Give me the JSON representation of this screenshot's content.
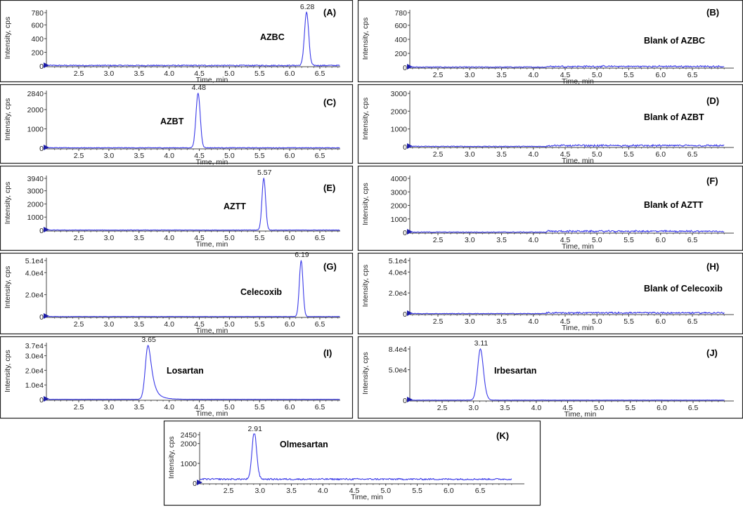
{
  "colors": {
    "trace": "#3a3ae8",
    "marker": "#1c1ca8",
    "frame": "#222222",
    "axis": "#444444"
  },
  "chart_data": [
    {
      "id": "A",
      "type": "line",
      "panel_label": "(A)",
      "compound": "AZBC",
      "xlabel": "Time, min",
      "ylabel": "Intensity, cps",
      "xlim": [
        2.0,
        7.0
      ],
      "x_ticks": [
        "2.5",
        "3.0",
        "3.5",
        "4.0",
        "4.5",
        "5.0",
        "5.5",
        "6.0",
        "6.5"
      ],
      "ylim": [
        0,
        780
      ],
      "y_ticks": [
        {
          "value": 0,
          "label": "0"
        },
        {
          "value": 200,
          "label": "200"
        },
        {
          "value": 400,
          "label": "400"
        },
        {
          "value": 600,
          "label": "600"
        },
        {
          "value": 780,
          "label": "780"
        }
      ],
      "peak": {
        "rt": 6.28,
        "label": "6.28",
        "height": 780,
        "width": 0.035,
        "tail": 0
      },
      "baseline": 8,
      "noise": 8
    },
    {
      "id": "B",
      "type": "line",
      "panel_label": "(B)",
      "compound": "Blank of AZBC",
      "xlabel": "Time, min",
      "ylabel": "Intensity, cps",
      "xlim": [
        2.0,
        7.0
      ],
      "x_ticks": [
        "2.5",
        "3.0",
        "3.5",
        "4.0",
        "4.5",
        "5.0",
        "5.5",
        "6.0",
        "6.5"
      ],
      "ylim": [
        0,
        780
      ],
      "y_ticks": [
        {
          "value": 0,
          "label": "0"
        },
        {
          "value": 200,
          "label": "200"
        },
        {
          "value": 400,
          "label": "400"
        },
        {
          "value": 600,
          "label": "600"
        },
        {
          "value": 780,
          "label": "780"
        }
      ],
      "peak": null,
      "baseline": 5,
      "noise": 6,
      "late_noise": {
        "start": 4.2,
        "amp": 18
      }
    },
    {
      "id": "C",
      "type": "line",
      "panel_label": "(C)",
      "compound": "AZBT",
      "xlabel": "Time, min",
      "ylabel": "Intensity, cps",
      "xlim": [
        2.0,
        7.0
      ],
      "x_ticks": [
        "2.5",
        "3.0",
        "3.5",
        "4.0",
        "4.5",
        "5.0",
        "5.5",
        "6.0",
        "6.5"
      ],
      "ylim": [
        0,
        2840
      ],
      "y_ticks": [
        {
          "value": 0,
          "label": "0"
        },
        {
          "value": 1000,
          "label": "1000"
        },
        {
          "value": 2000,
          "label": "2000"
        },
        {
          "value": 2840,
          "label": "2840"
        }
      ],
      "peak": {
        "rt": 4.48,
        "label": "4.48",
        "height": 2840,
        "width": 0.035,
        "tail": 0
      },
      "baseline": 20,
      "noise": 15
    },
    {
      "id": "D",
      "type": "line",
      "panel_label": "(D)",
      "compound": "Blank of AZBT",
      "xlabel": "Time, min",
      "ylabel": "Intensity, cps",
      "xlim": [
        2.0,
        7.0
      ],
      "x_ticks": [
        "2.5",
        "3.0",
        "3.5",
        "4.0",
        "4.5",
        "5.0",
        "5.5",
        "6.0",
        "6.5"
      ],
      "ylim": [
        0,
        3000
      ],
      "y_ticks": [
        {
          "value": 0,
          "label": "0"
        },
        {
          "value": 1000,
          "label": "1000"
        },
        {
          "value": 2000,
          "label": "2000"
        },
        {
          "value": 3000,
          "label": "3000"
        }
      ],
      "peak": null,
      "baseline": 20,
      "noise": 20,
      "late_noise": {
        "start": 4.2,
        "amp": 90
      }
    },
    {
      "id": "E",
      "type": "line",
      "panel_label": "(E)",
      "compound": "AZTT",
      "xlabel": "Time, min",
      "ylabel": "Intensity, cps",
      "xlim": [
        2.0,
        7.0
      ],
      "x_ticks": [
        "2.5",
        "3.0",
        "3.5",
        "4.0",
        "4.5",
        "5.0",
        "5.5",
        "6.0",
        "6.5"
      ],
      "ylim": [
        0,
        3940
      ],
      "y_ticks": [
        {
          "value": 0,
          "label": "0"
        },
        {
          "value": 1000,
          "label": "1000"
        },
        {
          "value": 2000,
          "label": "2000"
        },
        {
          "value": 3000,
          "label": "3000"
        },
        {
          "value": 3940,
          "label": "3940"
        }
      ],
      "peak": {
        "rt": 5.57,
        "label": "5.57",
        "height": 3940,
        "width": 0.03,
        "tail": 0
      },
      "baseline": 20,
      "noise": 15
    },
    {
      "id": "F",
      "type": "line",
      "panel_label": "(F)",
      "compound": "Blank of AZTT",
      "xlabel": "Time, min",
      "ylabel": "Intensity, cps",
      "xlim": [
        2.0,
        7.0
      ],
      "x_ticks": [
        "2.5",
        "3.0",
        "3.5",
        "4.0",
        "4.5",
        "5.0",
        "5.5",
        "6.0",
        "6.5"
      ],
      "ylim": [
        0,
        4000
      ],
      "y_ticks": [
        {
          "value": 0,
          "label": "0"
        },
        {
          "value": 1000,
          "label": "1000"
        },
        {
          "value": 2000,
          "label": "2000"
        },
        {
          "value": 3000,
          "label": "3000"
        },
        {
          "value": 4000,
          "label": "4000"
        }
      ],
      "peak": null,
      "baseline": 25,
      "noise": 25,
      "late_noise": {
        "start": 4.2,
        "amp": 120
      }
    },
    {
      "id": "G",
      "type": "line",
      "panel_label": "(G)",
      "compound": "Celecoxib",
      "xlabel": "Time, min",
      "ylabel": "Intensity, cps",
      "xlim": [
        2.0,
        7.0
      ],
      "x_ticks": [
        "2.5",
        "3.0",
        "3.5",
        "4.0",
        "4.5",
        "5.0",
        "5.5",
        "6.0",
        "6.5"
      ],
      "ylim": [
        0,
        51000
      ],
      "y_ticks": [
        {
          "value": 0,
          "label": "0"
        },
        {
          "value": 20000,
          "label": "2.0e4"
        },
        {
          "value": 40000,
          "label": "4.0e4"
        },
        {
          "value": 51000,
          "label": "5.1e4"
        }
      ],
      "peak": {
        "rt": 6.19,
        "label": "6.19",
        "height": 51000,
        "width": 0.03,
        "tail": 0
      },
      "baseline": 150,
      "noise": 150
    },
    {
      "id": "H",
      "type": "line",
      "panel_label": "(H)",
      "compound": "Blank of Celecoxib",
      "xlabel": "Time, min",
      "ylabel": "Intensity, cps",
      "xlim": [
        2.0,
        7.0
      ],
      "x_ticks": [
        "2.5",
        "3.0",
        "3.5",
        "4.0",
        "4.5",
        "5.0",
        "5.5",
        "6.0",
        "6.5"
      ],
      "ylim": [
        0,
        51000
      ],
      "y_ticks": [
        {
          "value": 0,
          "label": "0"
        },
        {
          "value": 20000,
          "label": "2.0e4"
        },
        {
          "value": 40000,
          "label": "4.0e4"
        },
        {
          "value": 51000,
          "label": "5.1e4"
        }
      ],
      "peak": null,
      "baseline": 300,
      "noise": 300,
      "late_noise": {
        "start": 4.2,
        "amp": 1400
      }
    },
    {
      "id": "I",
      "type": "line",
      "panel_label": "(I)",
      "compound": "Losartan",
      "xlabel": "Time, min",
      "ylabel": "Intensity, cps",
      "xlim": [
        2.0,
        7.0
      ],
      "x_ticks": [
        "2.5",
        "3.0",
        "3.5",
        "4.0",
        "4.5",
        "5.0",
        "5.5",
        "6.0",
        "6.5"
      ],
      "ylim": [
        0,
        37000
      ],
      "y_ticks": [
        {
          "value": 0,
          "label": "0"
        },
        {
          "value": 10000,
          "label": "1.0e4"
        },
        {
          "value": 20000,
          "label": "2.0e4"
        },
        {
          "value": 30000,
          "label": "3.0e4"
        },
        {
          "value": 37000,
          "label": "3.7e4"
        }
      ],
      "peak": {
        "rt": 3.65,
        "label": "3.65",
        "height": 37000,
        "width": 0.045,
        "tail": 0.22
      },
      "baseline": 150,
      "noise": 80
    },
    {
      "id": "J",
      "type": "line",
      "panel_label": "(J)",
      "compound": "Irbesartan",
      "xlabel": "Time, min",
      "ylabel": "Intensity, cps",
      "xlim": [
        2.0,
        7.0
      ],
      "x_ticks": [
        "2.5",
        "3.0",
        "3.5",
        "4.0",
        "4.5",
        "5.0",
        "5.5",
        "6.0",
        "6.5"
      ],
      "ylim": [
        0,
        84000
      ],
      "y_ticks": [
        {
          "value": 0,
          "label": "0"
        },
        {
          "value": 50000,
          "label": "5.0e4"
        },
        {
          "value": 84000,
          "label": "8.4e4"
        }
      ],
      "peak": {
        "rt": 3.11,
        "label": "3.11",
        "height": 84000,
        "width": 0.045,
        "tail": 0.05
      },
      "baseline": 200,
      "noise": 150
    },
    {
      "id": "K",
      "type": "line",
      "panel_label": "(K)",
      "compound": "Olmesartan",
      "xlabel": "Time, min",
      "ylabel": "Intensity, cps",
      "xlim": [
        2.0,
        7.0
      ],
      "x_ticks": [
        "2.5",
        "3.0",
        "3.5",
        "4.0",
        "4.5",
        "5.0",
        "5.5",
        "6.0",
        "6.5"
      ],
      "ylim": [
        0,
        2450
      ],
      "y_ticks": [
        {
          "value": 0,
          "label": "0"
        },
        {
          "value": 1000,
          "label": "1000"
        },
        {
          "value": 2000,
          "label": "2000"
        },
        {
          "value": 2450,
          "label": "2450"
        }
      ],
      "peak": {
        "rt": 2.91,
        "label": "2.91",
        "height": 2450,
        "width": 0.035,
        "tail": 0.04
      },
      "baseline": 200,
      "noise": 40
    }
  ]
}
